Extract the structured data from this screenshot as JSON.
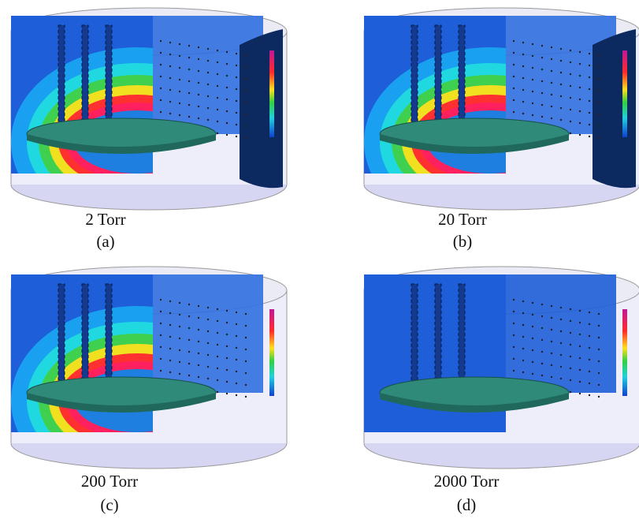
{
  "panels": [
    {
      "pressure": "2 Torr",
      "label": "(a)"
    },
    {
      "pressure": "20 Torr",
      "label": "(b)"
    },
    {
      "pressure": "200 Torr",
      "label": "(c)"
    },
    {
      "pressure": "2000 Torr",
      "label": "(d)"
    }
  ]
}
